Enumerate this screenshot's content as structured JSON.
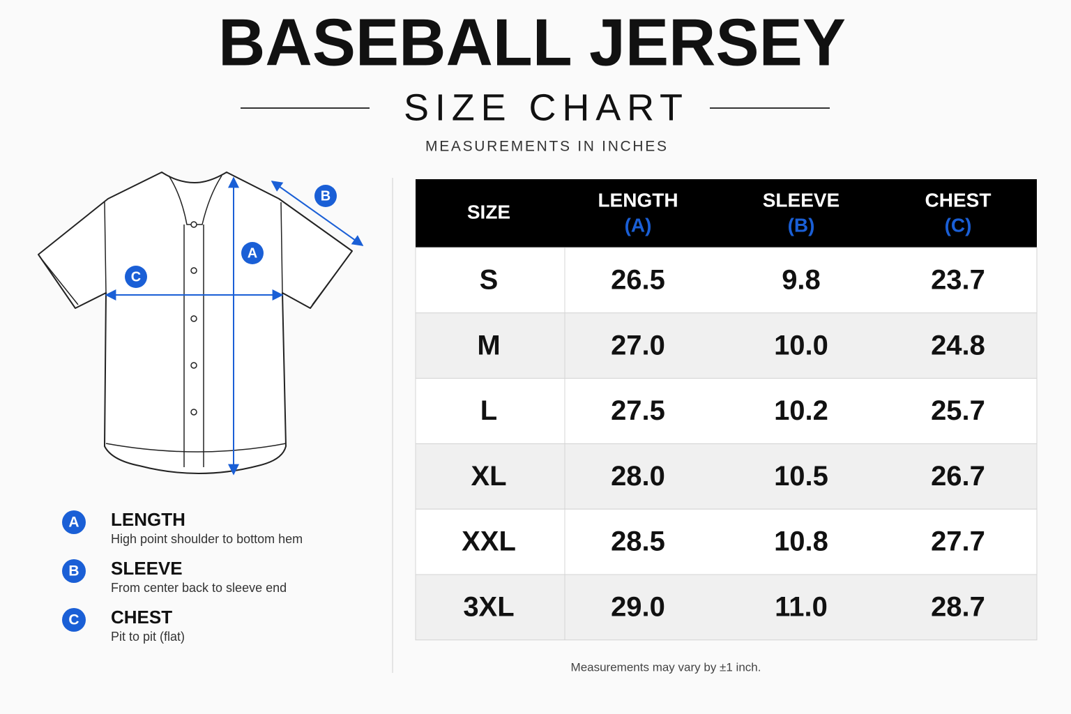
{
  "header": {
    "title": "BASEBALL JERSEY",
    "subtitle": "SIZE CHART",
    "units": "MEASUREMENTS IN INCHES"
  },
  "legend": {
    "items": [
      {
        "letter": "A",
        "name": "LENGTH",
        "description": "High point shoulder to bottom hem"
      },
      {
        "letter": "B",
        "name": "SLEEVE",
        "description": "From center back to sleeve end"
      },
      {
        "letter": "C",
        "name": "CHEST",
        "description": "Pit to pit (flat)"
      }
    ]
  },
  "table": {
    "columns": [
      {
        "label": "SIZE"
      },
      {
        "label": "LENGTH",
        "code": "(A)"
      },
      {
        "label": "SLEEVE",
        "code": "(B)"
      },
      {
        "label": "CHEST",
        "code": "(C)"
      }
    ],
    "rows": [
      [
        "S",
        "26.5",
        "9.8",
        "23.7"
      ],
      [
        "M",
        "27.0",
        "10.0",
        "24.8"
      ],
      [
        "L",
        "27.5",
        "10.2",
        "25.7"
      ],
      [
        "XL",
        "28.0",
        "10.5",
        "26.7"
      ],
      [
        "XXL",
        "28.5",
        "10.8",
        "27.7"
      ],
      [
        "3XL",
        "29.0",
        "11.0",
        "28.7"
      ]
    ]
  },
  "footnote": "Measurements may vary by ±1 inch."
}
